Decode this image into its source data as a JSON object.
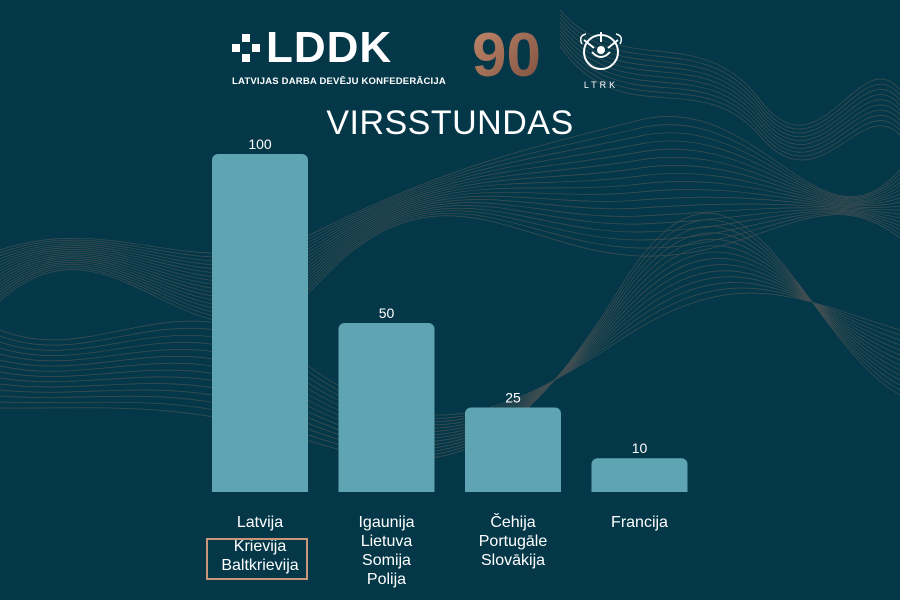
{
  "header": {
    "lddk_logo_text": "LDDK",
    "lddk_subtitle": "LATVIJAS DARBA DEVĒJU KONFEDERĀCIJA",
    "anniversary_text": "90",
    "ltrk_text": "LTRK",
    "colors": {
      "brand_white": "#ffffff",
      "anniversary_bronze": "#b07a60"
    }
  },
  "chart_data": {
    "type": "bar",
    "title": "VIRSSTUNDAS",
    "categories": [
      [
        "Latvija",
        "Krievija",
        "Baltkrievija"
      ],
      [
        "Igaunija",
        "Lietuva",
        "Somija",
        "Polija"
      ],
      [
        "Čehija",
        "Portugāle",
        "Slovākija"
      ],
      [
        "Francija"
      ]
    ],
    "values": [
      100,
      50,
      25,
      10
    ],
    "data_labels": [
      "100",
      "50",
      "25",
      "10"
    ],
    "highlighted_group": [
      "Krievija",
      "Baltkrievija"
    ],
    "ylim": [
      0,
      100
    ],
    "grid": false,
    "legend": "none",
    "colors": {
      "bar": "#5fa4b3",
      "background": "#043849",
      "highlight_border": "#c9967a"
    }
  }
}
